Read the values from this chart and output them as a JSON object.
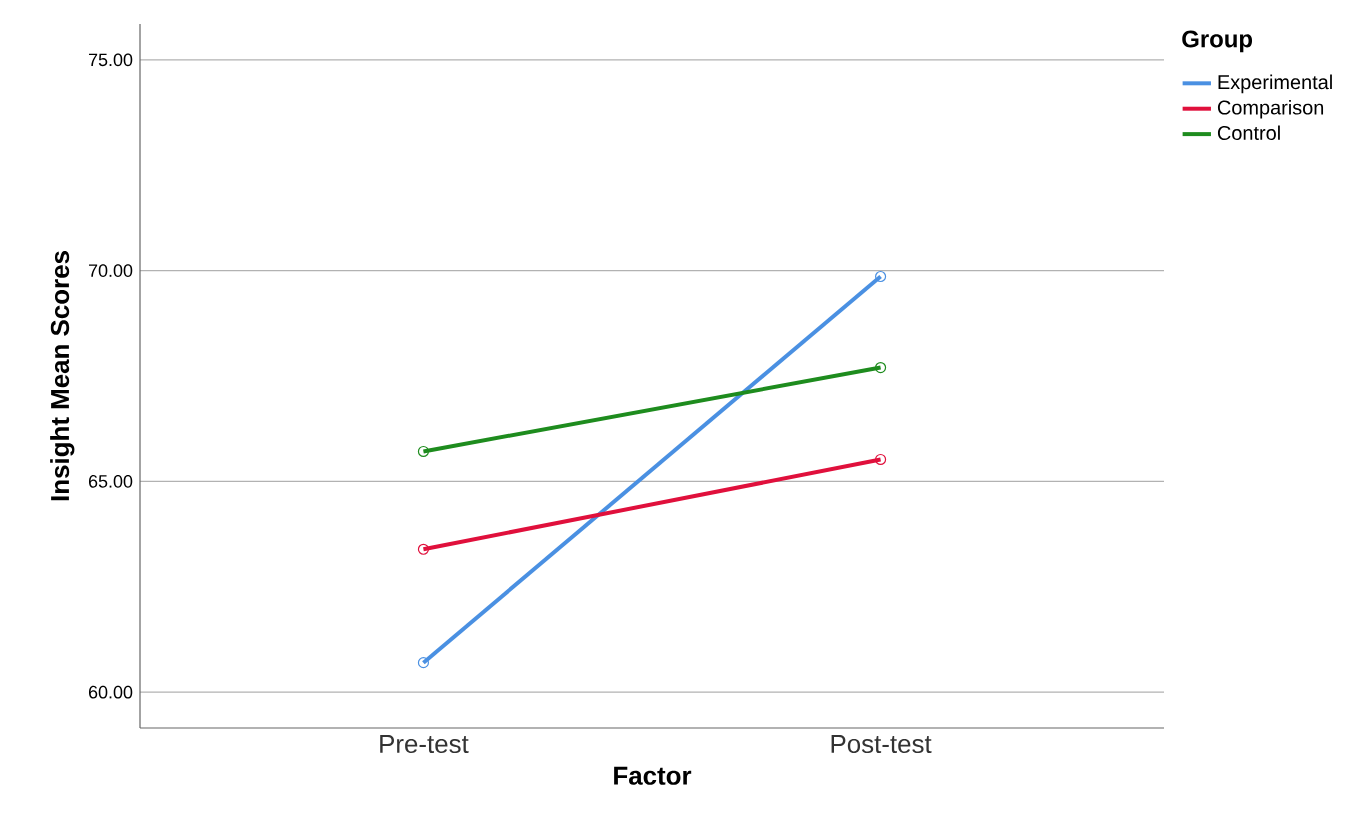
{
  "chart_data": {
    "type": "line",
    "xlabel": "Factor",
    "ylabel": "Insight Mean Scores",
    "legend_title": "Group",
    "categories": [
      "Pre-test",
      "Post-test"
    ],
    "series": [
      {
        "name": "Experimental",
        "color": "#4a90e2",
        "values": [
          60.7,
          69.86
        ]
      },
      {
        "name": "Comparison",
        "color": "#e0103c",
        "values": [
          63.39,
          65.52
        ]
      },
      {
        "name": "Control",
        "color": "#1e8c1e",
        "values": [
          65.71,
          67.7
        ]
      }
    ],
    "ylim": [
      59.15,
      75.85
    ],
    "yticks": [
      {
        "value": 60,
        "label": "60.00"
      },
      {
        "value": 65,
        "label": "65.00"
      },
      {
        "value": 70,
        "label": "70.00"
      },
      {
        "value": 75,
        "label": "75.00"
      }
    ],
    "grid": "y",
    "legend": "top right",
    "marker": "circle",
    "line_style": "solid"
  }
}
